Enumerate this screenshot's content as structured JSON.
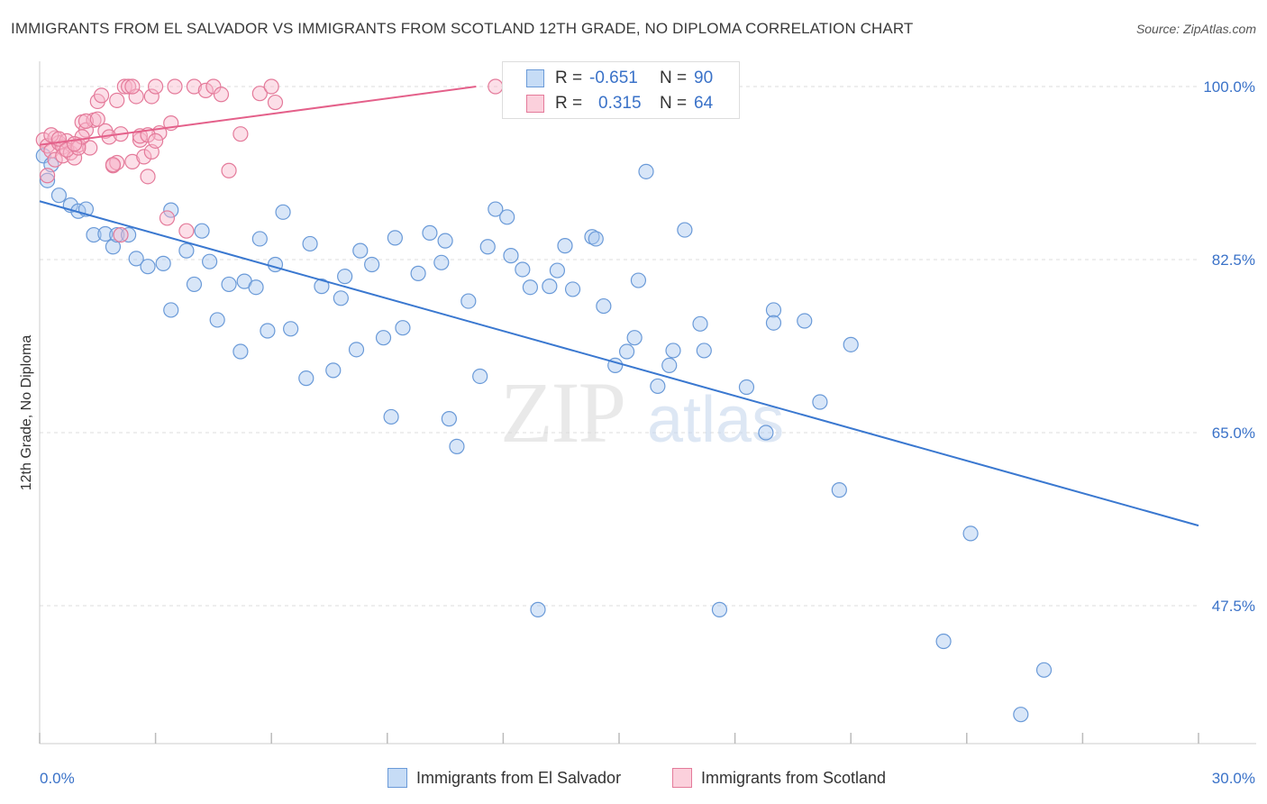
{
  "title": "IMMIGRANTS FROM EL SALVADOR VS IMMIGRANTS FROM SCOTLAND 12TH GRADE, NO DIPLOMA CORRELATION CHART",
  "source": "Source: ZipAtlas.com",
  "watermark": {
    "zip": "ZIP",
    "atlas": "atlas"
  },
  "legend_stats": [
    {
      "r_label": "R =",
      "r_value": "-0.651",
      "n_label": "N =",
      "n_value": "90",
      "color": "#a8c8f0",
      "edge": "#6a9ad8"
    },
    {
      "r_label": "R =",
      "r_value": "0.315",
      "n_label": "N =",
      "n_value": "64",
      "color": "#f8b8cc",
      "edge": "#e47a9a"
    }
  ],
  "chart_data": {
    "type": "scatter",
    "xlabel": "",
    "ylabel": "12th Grade, No Diploma",
    "xlim": [
      0,
      30
    ],
    "ylim": [
      32,
      102
    ],
    "x_tick_labels": [
      "0.0%",
      "30.0%"
    ],
    "y_ticks": [
      47.5,
      65.0,
      82.5,
      100.0
    ],
    "y_tick_labels": [
      "47.5%",
      "65.0%",
      "82.5%",
      "100.0%"
    ],
    "grid": true,
    "legend_position": "bottom",
    "series": [
      {
        "name": "Immigrants from El Salvador",
        "color": "#a8c8f0",
        "edge": "#6a9ad8",
        "trend": {
          "x": [
            0,
            30
          ],
          "y": [
            88.4,
            55.6
          ],
          "color": "#3a78d0"
        },
        "points": [
          [
            0.2,
            90.5
          ],
          [
            0.5,
            89.0
          ],
          [
            0.8,
            88.0
          ],
          [
            1.0,
            87.4
          ],
          [
            1.2,
            87.6
          ],
          [
            1.4,
            85.0
          ],
          [
            1.7,
            85.1
          ],
          [
            1.9,
            83.8
          ],
          [
            2.0,
            85.0
          ],
          [
            2.3,
            85.0
          ],
          [
            2.5,
            82.6
          ],
          [
            2.8,
            81.8
          ],
          [
            3.2,
            82.1
          ],
          [
            3.4,
            77.4
          ],
          [
            3.4,
            87.5
          ],
          [
            3.8,
            83.4
          ],
          [
            4.0,
            80.0
          ],
          [
            4.2,
            85.4
          ],
          [
            4.4,
            82.3
          ],
          [
            4.6,
            76.4
          ],
          [
            4.9,
            80.0
          ],
          [
            5.2,
            73.2
          ],
          [
            5.3,
            80.3
          ],
          [
            5.6,
            79.7
          ],
          [
            5.7,
            84.6
          ],
          [
            5.9,
            75.3
          ],
          [
            6.1,
            82.0
          ],
          [
            6.3,
            87.3
          ],
          [
            6.5,
            75.5
          ],
          [
            6.9,
            70.5
          ],
          [
            7.0,
            84.1
          ],
          [
            7.3,
            79.8
          ],
          [
            7.6,
            71.3
          ],
          [
            7.8,
            78.6
          ],
          [
            7.9,
            80.8
          ],
          [
            8.2,
            73.4
          ],
          [
            8.3,
            83.4
          ],
          [
            8.6,
            82.0
          ],
          [
            8.9,
            74.6
          ],
          [
            9.1,
            66.6
          ],
          [
            9.2,
            84.7
          ],
          [
            9.4,
            75.6
          ],
          [
            9.8,
            81.1
          ],
          [
            10.1,
            85.2
          ],
          [
            10.4,
            82.2
          ],
          [
            10.5,
            84.4
          ],
          [
            10.6,
            66.4
          ],
          [
            10.8,
            63.6
          ],
          [
            11.1,
            78.3
          ],
          [
            11.4,
            70.7
          ],
          [
            11.6,
            83.8
          ],
          [
            11.8,
            87.6
          ],
          [
            12.1,
            86.8
          ],
          [
            12.2,
            82.9
          ],
          [
            12.5,
            81.5
          ],
          [
            12.7,
            79.7
          ],
          [
            12.9,
            47.1
          ],
          [
            13.2,
            79.8
          ],
          [
            13.4,
            81.4
          ],
          [
            13.6,
            83.9
          ],
          [
            13.8,
            79.5
          ],
          [
            14.3,
            84.8
          ],
          [
            14.4,
            84.6
          ],
          [
            14.6,
            77.8
          ],
          [
            14.9,
            71.8
          ],
          [
            15.2,
            73.2
          ],
          [
            15.4,
            74.6
          ],
          [
            15.5,
            80.4
          ],
          [
            15.7,
            91.4
          ],
          [
            16.0,
            69.7
          ],
          [
            16.3,
            71.8
          ],
          [
            16.4,
            73.3
          ],
          [
            16.7,
            85.5
          ],
          [
            17.1,
            76.0
          ],
          [
            17.2,
            73.3
          ],
          [
            17.6,
            47.1
          ],
          [
            18.3,
            69.6
          ],
          [
            18.8,
            65.0
          ],
          [
            19.0,
            77.4
          ],
          [
            19.0,
            76.1
          ],
          [
            19.8,
            76.3
          ],
          [
            20.2,
            68.1
          ],
          [
            20.7,
            59.2
          ],
          [
            21.0,
            73.9
          ],
          [
            23.4,
            43.9
          ],
          [
            24.1,
            54.8
          ],
          [
            25.4,
            36.5
          ],
          [
            26.0,
            41.0
          ],
          [
            0.1,
            93.0
          ],
          [
            0.3,
            92.1
          ]
        ]
      },
      {
        "name": "Immigrants from Scotland",
        "color": "#f8b8cc",
        "edge": "#e47a9a",
        "trend": {
          "x": [
            0,
            11.3
          ],
          "y": [
            94.1,
            100.0
          ],
          "color": "#e4608a"
        },
        "points": [
          [
            0.1,
            94.6
          ],
          [
            0.2,
            94.0
          ],
          [
            0.3,
            93.5
          ],
          [
            0.4,
            94.8
          ],
          [
            0.4,
            92.6
          ],
          [
            0.5,
            94.3
          ],
          [
            0.6,
            93.9
          ],
          [
            0.6,
            93.0
          ],
          [
            0.7,
            94.5
          ],
          [
            0.8,
            93.3
          ],
          [
            0.9,
            92.8
          ],
          [
            1.0,
            94.1
          ],
          [
            1.1,
            96.4
          ],
          [
            1.2,
            95.6
          ],
          [
            1.3,
            93.8
          ],
          [
            1.4,
            96.6
          ],
          [
            1.5,
            98.5
          ],
          [
            1.6,
            99.1
          ],
          [
            1.7,
            95.5
          ],
          [
            1.8,
            94.9
          ],
          [
            1.9,
            92.0
          ],
          [
            2.0,
            92.3
          ],
          [
            2.0,
            98.6
          ],
          [
            2.1,
            95.2
          ],
          [
            2.2,
            100.0
          ],
          [
            2.3,
            100.0
          ],
          [
            2.4,
            92.4
          ],
          [
            2.5,
            99.0
          ],
          [
            2.6,
            94.6
          ],
          [
            2.7,
            92.9
          ],
          [
            2.8,
            90.9
          ],
          [
            2.9,
            99.0
          ],
          [
            2.9,
            93.4
          ],
          [
            3.1,
            95.3
          ],
          [
            3.3,
            86.7
          ],
          [
            3.4,
            96.3
          ],
          [
            3.5,
            100.0
          ],
          [
            3.8,
            85.4
          ],
          [
            4.0,
            100.0
          ],
          [
            4.3,
            99.6
          ],
          [
            4.5,
            100.0
          ],
          [
            4.7,
            99.2
          ],
          [
            4.9,
            91.5
          ],
          [
            5.2,
            95.2
          ],
          [
            5.7,
            99.3
          ],
          [
            6.0,
            100.0
          ],
          [
            6.1,
            98.4
          ],
          [
            0.3,
            95.1
          ],
          [
            0.5,
            94.7
          ],
          [
            0.7,
            93.6
          ],
          [
            1.0,
            93.8
          ],
          [
            1.2,
            96.5
          ],
          [
            1.5,
            96.7
          ],
          [
            1.9,
            92.1
          ],
          [
            2.6,
            95.0
          ],
          [
            2.8,
            95.1
          ],
          [
            3.0,
            94.5
          ],
          [
            1.1,
            94.9
          ],
          [
            0.9,
            94.2
          ],
          [
            2.4,
            100.0
          ],
          [
            3.0,
            100.0
          ],
          [
            11.8,
            100.0
          ],
          [
            2.1,
            85.0
          ],
          [
            0.2,
            91.0
          ]
        ]
      }
    ]
  },
  "bottom_legend": [
    {
      "label": "Immigrants from El Salvador",
      "color": "#a8c8f0",
      "edge": "#6a9ad8"
    },
    {
      "label": "Immigrants from Scotland",
      "color": "#f8b8cc",
      "edge": "#e47a9a"
    }
  ]
}
